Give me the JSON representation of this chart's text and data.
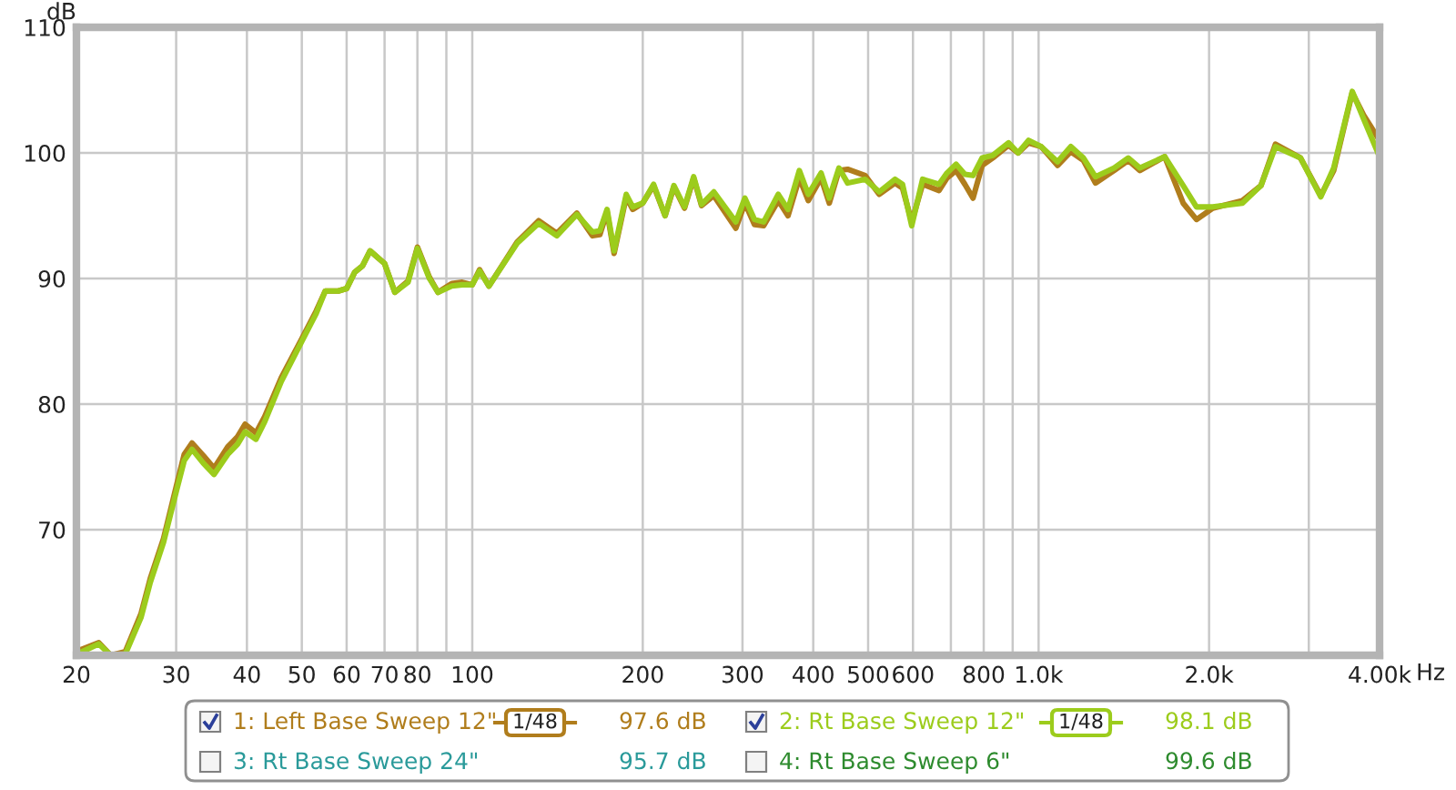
{
  "chart_data": {
    "type": "line",
    "ylabel": "dB",
    "xlabel": "Hz",
    "log": "x",
    "grid": true,
    "legend": "bottom",
    "marker": "none",
    "line_style": "solid",
    "xlim": [
      20,
      4000
    ],
    "ylim": [
      60,
      110
    ],
    "xticks": [
      20,
      30,
      40,
      50,
      60,
      70,
      80,
      {
        "value": 90,
        "label": null
      },
      100,
      200,
      300,
      400,
      500,
      600,
      {
        "value": 700,
        "label": null
      },
      800,
      {
        "value": 900,
        "label": null
      },
      {
        "value": 1000,
        "label": "1.0k"
      },
      {
        "value": 2000,
        "label": "2.0k"
      },
      {
        "value": 3000,
        "label": null
      },
      {
        "value": 4000,
        "label": "4.00k"
      }
    ],
    "yticks": [
      {
        "value": 60,
        "label": null
      },
      70,
      80,
      90,
      100,
      110
    ],
    "x": [
      20.5,
      21.9,
      23,
      24.4,
      26,
      27,
      28.5,
      30,
      31,
      32,
      33.5,
      35,
      37,
      38.5,
      39.7,
      41.5,
      43,
      46,
      50,
      53,
      55,
      58,
      60,
      62,
      64,
      66,
      70,
      73,
      77,
      80,
      84,
      87,
      92,
      96,
      100,
      103,
      107,
      120,
      131,
      141,
      153,
      163,
      168,
      173,
      178,
      187,
      192,
      200,
      209,
      219,
      227,
      237,
      246,
      254,
      267,
      292,
      303,
      315,
      327,
      347,
      361,
      378,
      392,
      413,
      427,
      444,
      460,
      494,
      523,
      558,
      575,
      597,
      624,
      667,
      689,
      715,
      741,
      766,
      795,
      830,
      885,
      920,
      960,
      1010,
      1080,
      1140,
      1200,
      1260,
      1360,
      1440,
      1510,
      1670,
      1800,
      1900,
      2030,
      2290,
      2470,
      2620,
      2900,
      3150,
      3320,
      3580,
      3750,
      4000
    ],
    "series": [
      {
        "name": "1: Left Base Sweep 12\"",
        "color": "#b07d1c",
        "values": [
          60.5,
          61.0,
          60.0,
          60.3,
          63.3,
          66.1,
          69.3,
          73.4,
          76.0,
          76.9,
          75.9,
          74.9,
          76.6,
          77.4,
          78.4,
          77.7,
          79.0,
          82.1,
          85.2,
          87.4,
          89.0,
          89.0,
          89.2,
          90.5,
          91.0,
          92.2,
          91.2,
          88.9,
          89.8,
          92.5,
          90.1,
          88.9,
          89.6,
          89.7,
          89.5,
          90.7,
          89.4,
          92.9,
          94.6,
          93.6,
          95.2,
          93.4,
          93.5,
          95.3,
          92.0,
          96.5,
          95.5,
          96.0,
          97.4,
          95.0,
          97.3,
          95.6,
          98.0,
          95.8,
          96.6,
          94.0,
          96.0,
          94.3,
          94.2,
          96.2,
          95.0,
          98.0,
          96.2,
          98.0,
          96.0,
          98.6,
          98.7,
          98.2,
          96.7,
          97.6,
          97.2,
          94.5,
          97.5,
          97.0,
          98.0,
          98.6,
          97.5,
          96.4,
          99.0,
          99.6,
          100.6,
          100.0,
          100.8,
          100.5,
          99.0,
          100.1,
          99.4,
          97.6,
          98.6,
          99.4,
          98.6,
          99.7,
          96.0,
          94.7,
          95.6,
          96.2,
          97.4,
          100.7,
          99.6,
          96.6,
          98.6,
          104.8,
          103.0,
          101.0
        ]
      },
      {
        "name": "2: Rt Base Sweep 12\"",
        "color": "#9ccc1c",
        "values": [
          60.3,
          60.9,
          60.0,
          60.1,
          63.0,
          65.8,
          69.0,
          73.0,
          75.5,
          76.4,
          75.3,
          74.4,
          76.0,
          76.8,
          77.8,
          77.2,
          78.6,
          81.8,
          85.0,
          87.2,
          89.0,
          89.0,
          89.2,
          90.5,
          91.0,
          92.2,
          91.2,
          88.9,
          89.7,
          92.4,
          90.0,
          88.9,
          89.4,
          89.5,
          89.5,
          90.6,
          89.4,
          92.8,
          94.4,
          93.4,
          95.1,
          93.7,
          93.8,
          95.5,
          92.2,
          96.7,
          95.7,
          96.0,
          97.5,
          95.0,
          97.4,
          95.7,
          98.1,
          95.9,
          96.9,
          94.5,
          96.4,
          94.7,
          94.5,
          96.7,
          95.5,
          98.6,
          96.7,
          98.4,
          96.4,
          98.8,
          97.6,
          97.9,
          96.9,
          97.9,
          97.5,
          94.2,
          97.9,
          97.5,
          98.4,
          99.1,
          98.3,
          98.2,
          99.6,
          99.8,
          100.8,
          100.0,
          101.0,
          100.5,
          99.3,
          100.5,
          99.6,
          98.1,
          98.8,
          99.6,
          98.8,
          99.7,
          97.4,
          95.7,
          95.7,
          96.0,
          97.4,
          100.5,
          99.6,
          96.5,
          98.8,
          104.9,
          102.7,
          99.7
        ]
      }
    ],
    "annotations": [
      "1/48",
      "97.6 dB",
      "1/48",
      "98.1 dB",
      "3: Rt Base Sweep 24\"",
      "95.7 dB",
      "4: Rt Base Sweep 6\"",
      "99.6 dB"
    ]
  }
}
